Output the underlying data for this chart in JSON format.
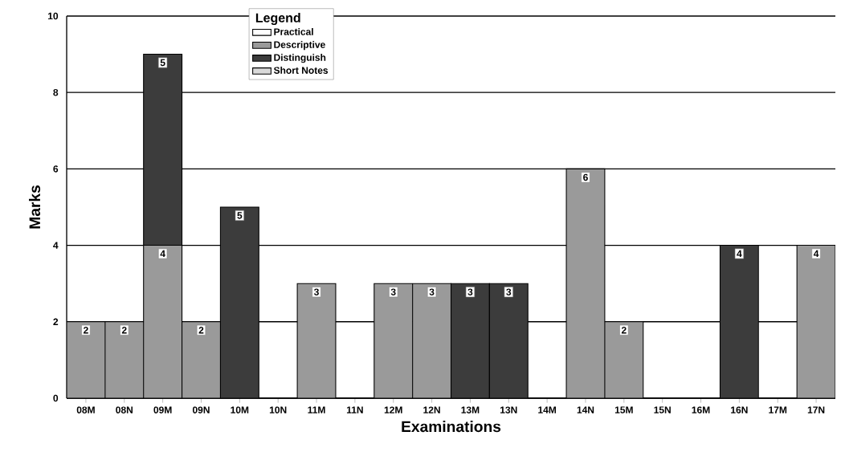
{
  "chart_data": {
    "type": "bar",
    "stacked": true,
    "xlabel": "Examinations",
    "ylabel": "Marks",
    "legend_title": "Legend",
    "categories": [
      "08M",
      "08N",
      "09M",
      "09N",
      "10M",
      "10N",
      "11M",
      "11N",
      "12M",
      "12N",
      "13M",
      "13N",
      "14M",
      "14N",
      "15M",
      "15N",
      "16M",
      "16N",
      "17M",
      "17N"
    ],
    "series": [
      {
        "name": "Practical",
        "color": "#ffffff",
        "values": [
          null,
          null,
          null,
          null,
          null,
          null,
          null,
          null,
          null,
          null,
          null,
          null,
          null,
          null,
          null,
          null,
          null,
          null,
          null,
          null
        ]
      },
      {
        "name": "Descriptive",
        "color": "#9a9a9a",
        "values": [
          2,
          2,
          4,
          2,
          null,
          null,
          3,
          null,
          3,
          3,
          null,
          null,
          null,
          6,
          2,
          null,
          null,
          null,
          null,
          4
        ],
        "value_labels": [
          "2",
          "2",
          "4",
          "2",
          null,
          null,
          "3",
          null,
          "3",
          "3",
          null,
          null,
          null,
          "6",
          "2",
          null,
          null,
          null,
          null,
          "4"
        ]
      },
      {
        "name": "Distinguish",
        "color": "#3c3c3c",
        "values": [
          null,
          null,
          5,
          null,
          5,
          null,
          null,
          null,
          null,
          null,
          3,
          3,
          null,
          null,
          null,
          null,
          null,
          4,
          null,
          null
        ],
        "value_labels": [
          null,
          null,
          "5",
          null,
          "5",
          null,
          null,
          null,
          null,
          null,
          "3",
          "3",
          null,
          null,
          null,
          null,
          null,
          "4",
          null,
          null
        ]
      },
      {
        "name": "Short Notes",
        "color": "#d9d9d9",
        "values": [
          null,
          null,
          null,
          null,
          null,
          null,
          null,
          null,
          null,
          null,
          null,
          null,
          null,
          null,
          null,
          null,
          null,
          null,
          null,
          null
        ]
      }
    ],
    "ylim": [
      0,
      10
    ],
    "yticks": [
      0,
      2,
      4,
      6,
      8,
      10
    ],
    "grid": "y",
    "legend": "top"
  }
}
